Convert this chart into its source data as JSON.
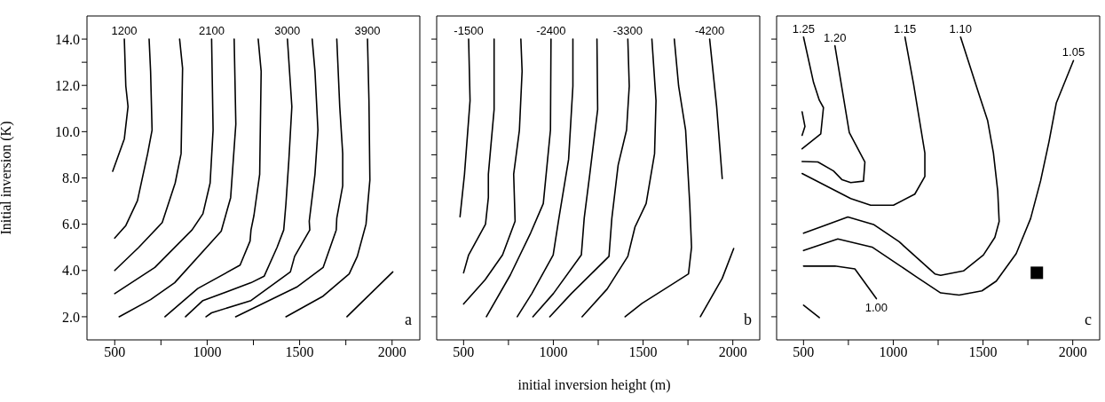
{
  "chart_data": [
    {
      "type": "line",
      "ylabel": "Initial inversion (K)",
      "annotations": [
        "a"
      ],
      "legend": false,
      "marker": "none",
      "line_style": "solid",
      "xlim": [
        350,
        2150
      ],
      "ylim": [
        1,
        15
      ],
      "xticks": [
        500,
        {
          "value": 750,
          "label": null
        },
        1000,
        {
          "value": 1250,
          "label": null
        },
        1500,
        {
          "value": 1750,
          "label": null
        },
        2000
      ],
      "yticks": [
        {
          "value": 2,
          "label": "2.0"
        },
        {
          "value": 3,
          "label": null
        },
        {
          "value": 4,
          "label": "4.0"
        },
        {
          "value": 5,
          "label": null
        },
        {
          "value": 6,
          "label": "6.0"
        },
        {
          "value": 7,
          "label": null
        },
        {
          "value": 8,
          "label": "8.0"
        },
        {
          "value": 9,
          "label": null
        },
        {
          "value": 10,
          "label": "10.0"
        },
        {
          "value": 11,
          "label": null
        },
        {
          "value": 12,
          "label": "12.0"
        },
        {
          "value": 13,
          "label": null
        },
        {
          "value": 14,
          "label": "14.0"
        }
      ],
      "series": [
        {
          "name": "1200",
          "color": "#000000",
          "x": [
            552,
            560,
            572,
            552,
            489
          ],
          "values": [
            14.0,
            11.97,
            11.08,
            9.69,
            8.29
          ]
        },
        {
          "color": "#000000",
          "x": [
            686,
            694,
            702,
            678,
            623,
            560,
            500
          ],
          "values": [
            14.0,
            12.61,
            10.07,
            9.05,
            7.02,
            5.94,
            5.4
          ]
        },
        {
          "color": "#000000",
          "x": [
            851,
            867,
            859,
            827,
            757,
            630,
            500
          ],
          "values": [
            14.0,
            12.74,
            9.05,
            7.78,
            6.07,
            5.0,
            4.0
          ]
        },
        {
          "name": "2100",
          "color": "#000000",
          "x": [
            1024,
            1032,
            1016,
            977,
            918,
            717,
            500
          ],
          "values": [
            14.0,
            10.07,
            7.78,
            6.45,
            5.75,
            4.13,
            3.0
          ]
        },
        {
          "color": "#000000",
          "x": [
            1146,
            1155,
            1127,
            1076,
            824,
            694,
            524
          ],
          "values": [
            14.0,
            10.32,
            7.15,
            5.7,
            3.47,
            2.74,
            2.0
          ]
        },
        {
          "color": "#000000",
          "x": [
            1276,
            1292,
            1284,
            1253,
            1237,
            1232,
            1178,
            949,
            772
          ],
          "values": [
            14.0,
            12.61,
            8.16,
            6.38,
            5.75,
            5.27,
            4.23,
            3.22,
            2.0
          ]
        },
        {
          "name": "3000",
          "color": "#000000",
          "x": [
            1434,
            1458,
            1442,
            1426,
            1414,
            1378,
            1308,
            1237,
            977,
            883
          ],
          "values": [
            14.0,
            11.08,
            8.8,
            6.89,
            5.75,
            5.0,
            3.75,
            3.47,
            2.7,
            2.0
          ]
        },
        {
          "color": "#000000",
          "x": [
            1568,
            1583,
            1599,
            1583,
            1552,
            1555,
            1473,
            1450,
            1237,
            1024,
            994
          ],
          "values": [
            14.0,
            12.61,
            10.07,
            8.16,
            6.13,
            5.75,
            4.61,
            3.94,
            2.7,
            2.17,
            2.0
          ]
        },
        {
          "color": "#000000",
          "x": [
            1701,
            1717,
            1733,
            1733,
            1701,
            1698,
            1627,
            1484,
            1154
          ],
          "values": [
            14.0,
            11.08,
            9.05,
            7.66,
            6.26,
            5.75,
            4.13,
            3.28,
            2.0
          ]
        },
        {
          "name": "3900",
          "color": "#000000",
          "x": [
            1867,
            1875,
            1880,
            1859,
            1812,
            1768,
            1627,
            1426
          ],
          "values": [
            14.0,
            11.34,
            7.91,
            6.0,
            4.61,
            3.85,
            2.89,
            2.0
          ]
        },
        {
          "color": "#000000",
          "x": [
            1756,
            2004
          ],
          "values": [
            2.0,
            3.94
          ]
        }
      ]
    },
    {
      "type": "line",
      "xlabel": "initial inversion height (m)",
      "annotations": [
        "b"
      ],
      "legend": false,
      "marker": "none",
      "line_style": "solid",
      "tick_labels": "x",
      "xlim": [
        350,
        2150
      ],
      "ylim": [
        1,
        15
      ],
      "xticks": [
        500,
        {
          "value": 750,
          "label": null
        },
        1000,
        {
          "value": 1250,
          "label": null
        },
        1500,
        {
          "value": 1750,
          "label": null
        },
        2000
      ],
      "yticks": [
        {
          "value": 2,
          "label": null
        },
        {
          "value": 3,
          "label": null
        },
        {
          "value": 4,
          "label": null
        },
        {
          "value": 5,
          "label": null
        },
        {
          "value": 6,
          "label": null
        },
        {
          "value": 7,
          "label": null
        },
        {
          "value": 8,
          "label": null
        },
        {
          "value": 9,
          "label": null
        },
        {
          "value": 10,
          "label": null
        },
        {
          "value": 11,
          "label": null
        },
        {
          "value": 12,
          "label": null
        },
        {
          "value": 13,
          "label": null
        },
        {
          "value": 14,
          "label": null
        }
      ],
      "series": [
        {
          "name": "-1500",
          "color": "#000000",
          "x": [
            528,
            536,
            505,
            480
          ],
          "values": [
            14.0,
            11.34,
            8.16,
            6.32
          ]
        },
        {
          "color": "#000000",
          "x": [
            670,
            670,
            638,
            638,
            622,
            528,
            500
          ],
          "values": [
            14.0,
            10.96,
            8.16,
            7.15,
            6.0,
            4.67,
            3.9
          ]
        },
        {
          "color": "#000000",
          "x": [
            819,
            826,
            811,
            779,
            787,
            717,
            620,
            500
          ],
          "values": [
            14.0,
            12.61,
            10.07,
            8.16,
            6.13,
            4.67,
            3.6,
            2.55
          ]
        },
        {
          "name": "-2400",
          "color": "#000000",
          "x": [
            987,
            984,
            944,
            874,
            760,
            627
          ],
          "values": [
            14.0,
            10.07,
            6.89,
            5.63,
            3.8,
            2.0
          ]
        },
        {
          "color": "#000000",
          "x": [
            1109,
            1109,
            1085,
            1031,
            999,
            880,
            799
          ],
          "values": [
            14.0,
            11.97,
            8.8,
            6.26,
            4.67,
            3.0,
            2.0
          ]
        },
        {
          "color": "#000000",
          "x": [
            1243,
            1247,
            1203,
            1172,
            1156,
            1000,
            886
          ],
          "values": [
            14.0,
            10.96,
            8.16,
            6.26,
            4.67,
            3.0,
            2.0
          ]
        },
        {
          "name": "-3300",
          "color": "#000000",
          "x": [
            1415,
            1423,
            1408,
            1361,
            1326,
            1310,
            1100,
            980
          ],
          "values": [
            14.0,
            11.97,
            10.07,
            8.55,
            6.26,
            4.61,
            3.0,
            2.0
          ]
        },
        {
          "color": "#000000",
          "x": [
            1549,
            1572,
            1564,
            1517,
            1455,
            1415,
            1300,
            1160
          ],
          "values": [
            14.0,
            11.34,
            9.05,
            6.89,
            5.88,
            4.61,
            3.2,
            2.0
          ]
        },
        {
          "color": "#000000",
          "x": [
            1674,
            1698,
            1737,
            1760,
            1770,
            1753,
            1494,
            1400
          ],
          "values": [
            14.0,
            11.97,
            10.07,
            6.89,
            5.0,
            3.85,
            2.58,
            2.0
          ]
        },
        {
          "name": "-4200",
          "color": "#000000",
          "x": [
            1871,
            1910,
            1941
          ],
          "values": [
            14.0,
            11.08,
            7.97
          ]
        },
        {
          "color": "#000000",
          "x": [
            1819,
            1941,
            2005
          ],
          "values": [
            2.0,
            3.66,
            4.95
          ]
        }
      ]
    },
    {
      "type": "line",
      "annotations": [
        "c"
      ],
      "legend": false,
      "marker": "none",
      "line_style": "solid",
      "tick_labels": "x",
      "xlim": [
        350,
        2150
      ],
      "ylim": [
        1,
        15
      ],
      "xticks": [
        500,
        {
          "value": 750,
          "label": null
        },
        1000,
        {
          "value": 1250,
          "label": null
        },
        1500,
        {
          "value": 1750,
          "label": null
        },
        2000
      ],
      "yticks": [
        {
          "value": 2,
          "label": null
        },
        {
          "value": 3,
          "label": null
        },
        {
          "value": 4,
          "label": null
        },
        {
          "value": 5,
          "label": null
        },
        {
          "value": 6,
          "label": null
        },
        {
          "value": 7,
          "label": null
        },
        {
          "value": 8,
          "label": null
        },
        {
          "value": 9,
          "label": null
        },
        {
          "value": 10,
          "label": null
        },
        {
          "value": 11,
          "label": null
        },
        {
          "value": 12,
          "label": null
        },
        {
          "value": 13,
          "label": null
        },
        {
          "value": 14,
          "label": null
        }
      ],
      "series": [
        {
          "name": "1.20",
          "color": "#000000",
          "x": [
            675,
            755,
            842,
            834,
            763,
            715,
            667,
            580,
            492
          ],
          "values": [
            13.71,
            9.96,
            8.69,
            7.86,
            7.8,
            7.92,
            8.3,
            8.69,
            8.71
          ]
        },
        {
          "name": "1.25",
          "color": "#000000",
          "x": [
            500,
            556,
            588,
            611,
            596,
            492
          ],
          "values": [
            14.09,
            12.12,
            11.36,
            11.04,
            9.9,
            9.26
          ]
        },
        {
          "color": "#000000",
          "x": [
            492,
            508,
            492
          ],
          "values": [
            10.86,
            10.22,
            9.84
          ]
        },
        {
          "name": "1.15",
          "color": "#000000",
          "x": [
            1065,
            1113,
            1176,
            1176,
            1120,
            1001,
            874,
            763,
            492
          ],
          "values": [
            14.09,
            12.06,
            9.08,
            8.06,
            7.3,
            6.82,
            6.82,
            7.11,
            8.19
          ]
        },
        {
          "name": "1.10",
          "color": "#000000",
          "x": [
            1375,
            1478,
            1526,
            1558,
            1582,
            1590,
            1566,
            1502,
            1391,
            1264,
            1232,
            1033,
            890,
            747,
            500
          ],
          "values": [
            14.09,
            11.61,
            10.47,
            9.08,
            7.43,
            6.12,
            5.43,
            4.67,
            3.98,
            3.79,
            3.85,
            5.24,
            5.99,
            6.31,
            5.61
          ]
        },
        {
          "name": "1.05",
          "color": "#000000",
          "x": [
            2004,
            1908,
            1868,
            1821,
            1765,
            1685,
            1574,
            1494,
            1367,
            1264,
            1128,
            1033,
            882,
            691,
            500
          ],
          "values": [
            13.07,
            11.23,
            9.58,
            7.88,
            6.24,
            4.73,
            3.54,
            3.12,
            2.94,
            3.03,
            3.73,
            4.23,
            5.01,
            5.36,
            4.86
          ]
        },
        {
          "name": "1.00",
          "color": "#000000",
          "x": [
            906,
            786,
            675,
            500
          ],
          "values": [
            2.78,
            4.07,
            4.19,
            4.19
          ]
        },
        {
          "color": "#000000",
          "x": [
            500,
            588
          ],
          "values": [
            2.5,
            1.96
          ]
        },
        {
          "type": "scatter",
          "marker": "square",
          "color": "#000000",
          "x": [
            1800
          ],
          "values": [
            3.9
          ]
        }
      ]
    }
  ]
}
